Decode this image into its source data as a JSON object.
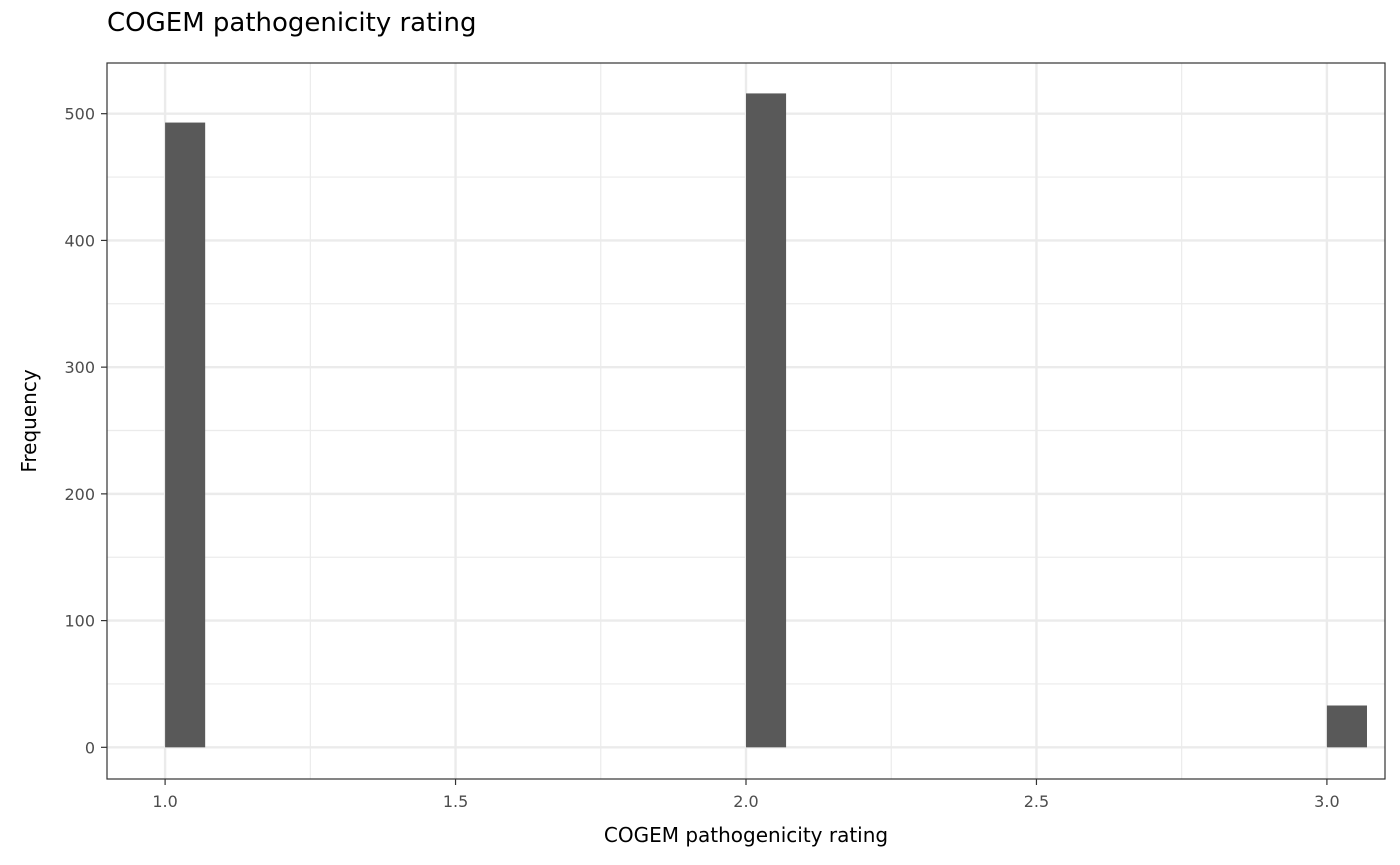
{
  "chart_data": {
    "type": "bar",
    "title": "COGEM pathogenicity rating",
    "xlabel": "COGEM pathogenicity rating",
    "ylabel": "Frequency",
    "x": [
      1.0,
      2.0,
      3.0
    ],
    "values": [
      493,
      516,
      33
    ],
    "xlim": [
      0.9,
      3.1
    ],
    "ylim": [
      -25,
      540
    ],
    "xticks": [
      1.0,
      1.5,
      2.0,
      2.5,
      3.0
    ],
    "xtick_labels": [
      "1.0",
      "1.5",
      "2.0",
      "2.5",
      "3.0"
    ],
    "yticks": [
      0,
      100,
      200,
      300,
      400,
      500
    ],
    "ytick_labels": [
      "0",
      "100",
      "200",
      "300",
      "400",
      "500"
    ],
    "grid": true,
    "legend": "none",
    "bar_color": "#595959",
    "grid_color": "#ebebeb",
    "panel_border_color": "#333333"
  }
}
